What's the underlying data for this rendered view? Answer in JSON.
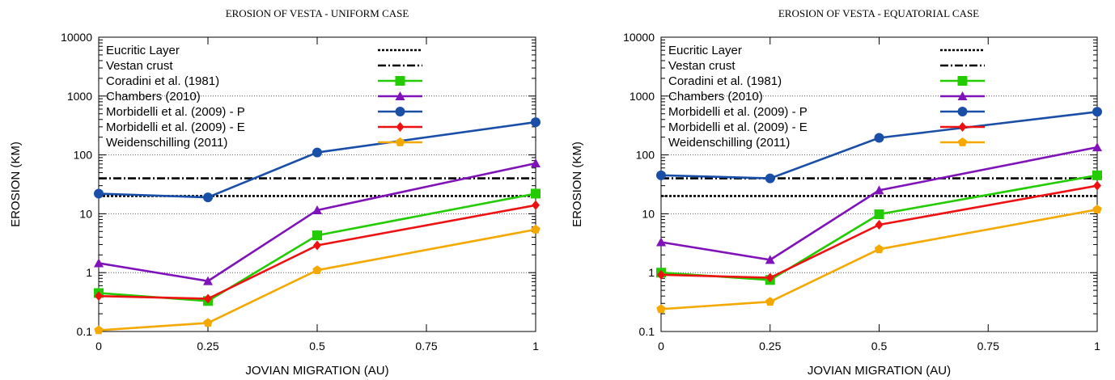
{
  "chart_data": [
    {
      "type": "line",
      "title": "EROSION OF VESTA - UNIFORM CASE",
      "xlabel": "JOVIAN MIGRATION (AU)",
      "ylabel": "EROSION (KM)",
      "xlim": [
        0,
        1
      ],
      "ylim": [
        0.1,
        10000
      ],
      "yscale": "log",
      "xticks": [
        "0",
        "0.25",
        "0.5",
        "0.75",
        "1"
      ],
      "yticks": [
        "0.1",
        "1",
        "10",
        "100",
        "1000",
        "10000"
      ],
      "grid": "horizontal dotted",
      "legend": "top-left",
      "x": [
        0,
        0.25,
        0.5,
        1
      ],
      "reference_lines": [
        {
          "name": "Eucritic Layer",
          "y": 20,
          "style": "dotted",
          "color": "#000000"
        },
        {
          "name": "Vestan crust",
          "y": 40,
          "style": "dash-dot",
          "color": "#000000"
        }
      ],
      "series": [
        {
          "name": "Coradini et al. (1981)",
          "marker": "square",
          "color": "#22cc00",
          "values": [
            0.45,
            0.33,
            4.3,
            22
          ]
        },
        {
          "name": "Chambers (2010)",
          "marker": "triangle",
          "color": "#7f12b8",
          "values": [
            1.45,
            0.72,
            11.5,
            72
          ]
        },
        {
          "name": "Morbidelli et al. (2009) - P",
          "marker": "circle",
          "color": "#1a4fa8",
          "values": [
            22,
            19,
            110,
            360
          ]
        },
        {
          "name": "Morbidelli et al. (2009) - E",
          "marker": "diamond",
          "color": "#ee1111",
          "values": [
            0.4,
            0.36,
            2.9,
            14
          ]
        },
        {
          "name": "Weidenschilling (2011)",
          "marker": "pentagon",
          "color": "#f5a800",
          "values": [
            0.105,
            0.14,
            1.1,
            5.4
          ]
        }
      ]
    },
    {
      "type": "line",
      "title": "EROSION OF VESTA - EQUATORIAL CASE",
      "xlabel": "JOVIAN MIGRATION (AU)",
      "ylabel": "EROSION (KM)",
      "xlim": [
        0,
        1
      ],
      "ylim": [
        0.1,
        10000
      ],
      "yscale": "log",
      "xticks": [
        "0",
        "0.25",
        "0.5",
        "0.75",
        "1"
      ],
      "yticks": [
        "0.1",
        "1",
        "10",
        "100",
        "1000",
        "10000"
      ],
      "grid": "horizontal dotted",
      "legend": "top-left",
      "x": [
        0,
        0.25,
        0.5,
        1
      ],
      "reference_lines": [
        {
          "name": "Eucritic Layer",
          "y": 20,
          "style": "dotted",
          "color": "#000000"
        },
        {
          "name": "Vestan crust",
          "y": 40,
          "style": "dash-dot",
          "color": "#000000"
        }
      ],
      "series": [
        {
          "name": "Coradini et al. (1981)",
          "marker": "square",
          "color": "#22cc00",
          "values": [
            1.0,
            0.75,
            9.8,
            45
          ]
        },
        {
          "name": "Chambers (2010)",
          "marker": "triangle",
          "color": "#7f12b8",
          "values": [
            3.3,
            1.65,
            25,
            135
          ]
        },
        {
          "name": "Morbidelli et al. (2009) - P",
          "marker": "circle",
          "color": "#1a4fa8",
          "values": [
            45,
            40,
            195,
            540
          ]
        },
        {
          "name": "Morbidelli et al. (2009) - E",
          "marker": "diamond",
          "color": "#ee1111",
          "values": [
            0.92,
            0.82,
            6.5,
            30
          ]
        },
        {
          "name": "Weidenschilling (2011)",
          "marker": "pentagon",
          "color": "#f5a800",
          "values": [
            0.24,
            0.32,
            2.5,
            11.8
          ]
        }
      ]
    }
  ]
}
